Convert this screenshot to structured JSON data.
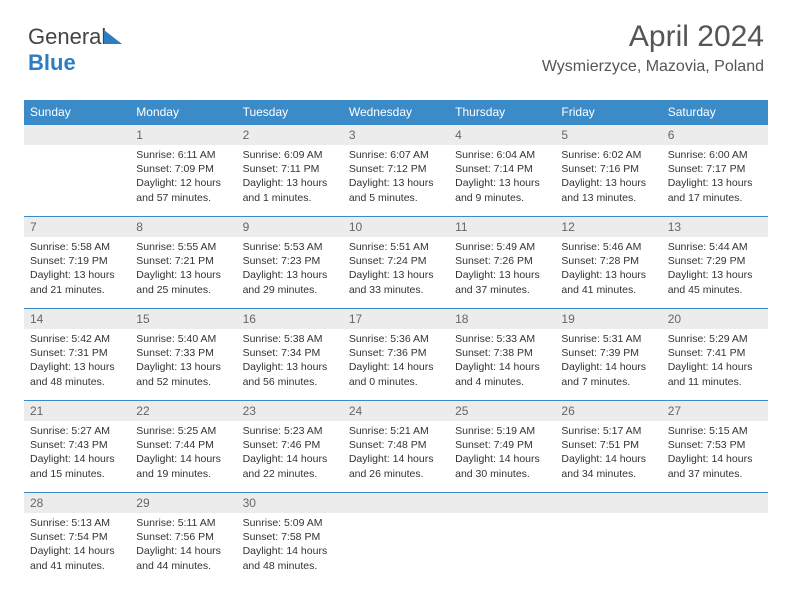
{
  "logo": {
    "text1": "General",
    "text2": "Blue"
  },
  "title": "April 2024",
  "subtitle": "Wysmierzyce, Mazovia, Poland",
  "colors": {
    "header_bg": "#3b8bc9",
    "daynum_bg": "#ececec",
    "border": "#3b8bc9"
  },
  "day_names": [
    "Sunday",
    "Monday",
    "Tuesday",
    "Wednesday",
    "Thursday",
    "Friday",
    "Saturday"
  ],
  "weeks": [
    [
      null,
      {
        "n": "1",
        "sr": "6:11 AM",
        "ss": "7:09 PM",
        "dl": "12 hours and 57 minutes."
      },
      {
        "n": "2",
        "sr": "6:09 AM",
        "ss": "7:11 PM",
        "dl": "13 hours and 1 minutes."
      },
      {
        "n": "3",
        "sr": "6:07 AM",
        "ss": "7:12 PM",
        "dl": "13 hours and 5 minutes."
      },
      {
        "n": "4",
        "sr": "6:04 AM",
        "ss": "7:14 PM",
        "dl": "13 hours and 9 minutes."
      },
      {
        "n": "5",
        "sr": "6:02 AM",
        "ss": "7:16 PM",
        "dl": "13 hours and 13 minutes."
      },
      {
        "n": "6",
        "sr": "6:00 AM",
        "ss": "7:17 PM",
        "dl": "13 hours and 17 minutes."
      }
    ],
    [
      {
        "n": "7",
        "sr": "5:58 AM",
        "ss": "7:19 PM",
        "dl": "13 hours and 21 minutes."
      },
      {
        "n": "8",
        "sr": "5:55 AM",
        "ss": "7:21 PM",
        "dl": "13 hours and 25 minutes."
      },
      {
        "n": "9",
        "sr": "5:53 AM",
        "ss": "7:23 PM",
        "dl": "13 hours and 29 minutes."
      },
      {
        "n": "10",
        "sr": "5:51 AM",
        "ss": "7:24 PM",
        "dl": "13 hours and 33 minutes."
      },
      {
        "n": "11",
        "sr": "5:49 AM",
        "ss": "7:26 PM",
        "dl": "13 hours and 37 minutes."
      },
      {
        "n": "12",
        "sr": "5:46 AM",
        "ss": "7:28 PM",
        "dl": "13 hours and 41 minutes."
      },
      {
        "n": "13",
        "sr": "5:44 AM",
        "ss": "7:29 PM",
        "dl": "13 hours and 45 minutes."
      }
    ],
    [
      {
        "n": "14",
        "sr": "5:42 AM",
        "ss": "7:31 PM",
        "dl": "13 hours and 48 minutes."
      },
      {
        "n": "15",
        "sr": "5:40 AM",
        "ss": "7:33 PM",
        "dl": "13 hours and 52 minutes."
      },
      {
        "n": "16",
        "sr": "5:38 AM",
        "ss": "7:34 PM",
        "dl": "13 hours and 56 minutes."
      },
      {
        "n": "17",
        "sr": "5:36 AM",
        "ss": "7:36 PM",
        "dl": "14 hours and 0 minutes."
      },
      {
        "n": "18",
        "sr": "5:33 AM",
        "ss": "7:38 PM",
        "dl": "14 hours and 4 minutes."
      },
      {
        "n": "19",
        "sr": "5:31 AM",
        "ss": "7:39 PM",
        "dl": "14 hours and 7 minutes."
      },
      {
        "n": "20",
        "sr": "5:29 AM",
        "ss": "7:41 PM",
        "dl": "14 hours and 11 minutes."
      }
    ],
    [
      {
        "n": "21",
        "sr": "5:27 AM",
        "ss": "7:43 PM",
        "dl": "14 hours and 15 minutes."
      },
      {
        "n": "22",
        "sr": "5:25 AM",
        "ss": "7:44 PM",
        "dl": "14 hours and 19 minutes."
      },
      {
        "n": "23",
        "sr": "5:23 AM",
        "ss": "7:46 PM",
        "dl": "14 hours and 22 minutes."
      },
      {
        "n": "24",
        "sr": "5:21 AM",
        "ss": "7:48 PM",
        "dl": "14 hours and 26 minutes."
      },
      {
        "n": "25",
        "sr": "5:19 AM",
        "ss": "7:49 PM",
        "dl": "14 hours and 30 minutes."
      },
      {
        "n": "26",
        "sr": "5:17 AM",
        "ss": "7:51 PM",
        "dl": "14 hours and 34 minutes."
      },
      {
        "n": "27",
        "sr": "5:15 AM",
        "ss": "7:53 PM",
        "dl": "14 hours and 37 minutes."
      }
    ],
    [
      {
        "n": "28",
        "sr": "5:13 AM",
        "ss": "7:54 PM",
        "dl": "14 hours and 41 minutes."
      },
      {
        "n": "29",
        "sr": "5:11 AM",
        "ss": "7:56 PM",
        "dl": "14 hours and 44 minutes."
      },
      {
        "n": "30",
        "sr": "5:09 AM",
        "ss": "7:58 PM",
        "dl": "14 hours and 48 minutes."
      },
      null,
      null,
      null,
      null
    ]
  ],
  "labels": {
    "sunrise": "Sunrise:",
    "sunset": "Sunset:",
    "daylight": "Daylight:"
  }
}
